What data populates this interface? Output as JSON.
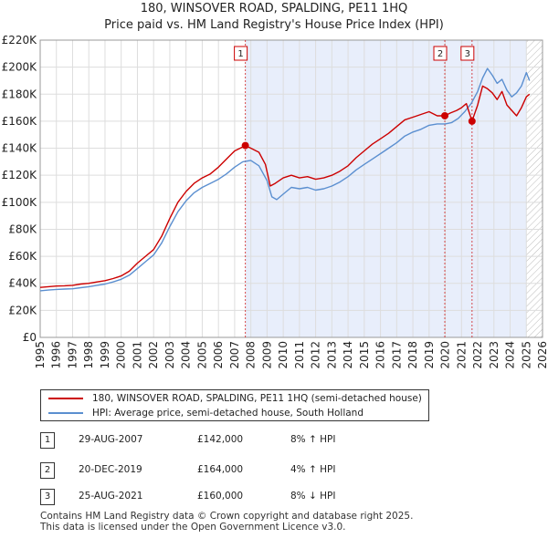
{
  "title_line1": "180, WINSOVER ROAD, SPALDING, PE11 1HQ",
  "title_line2": "Price paid vs. HM Land Registry's House Price Index (HPI)",
  "colors": {
    "property": "#cc0000",
    "hpi": "#5b8fd0",
    "shade": "#e8eefb",
    "event_line": "#cc0000"
  },
  "chart_data": {
    "type": "line",
    "xlim": [
      1995,
      2026
    ],
    "ylim": [
      0,
      220000
    ],
    "x_ticks": [
      "1995",
      "1996",
      "1997",
      "1998",
      "1999",
      "2000",
      "2001",
      "2002",
      "2003",
      "2004",
      "2005",
      "2006",
      "2007",
      "2008",
      "2009",
      "2010",
      "2011",
      "2012",
      "2013",
      "2014",
      "2015",
      "2016",
      "2017",
      "2018",
      "2019",
      "2020",
      "2021",
      "2022",
      "2023",
      "2024",
      "2025",
      "2026"
    ],
    "y_ticks": [
      {
        "value": 0,
        "label": "£0"
      },
      {
        "value": 20000,
        "label": "£20K"
      },
      {
        "value": 40000,
        "label": "£40K"
      },
      {
        "value": 60000,
        "label": "£60K"
      },
      {
        "value": 80000,
        "label": "£80K"
      },
      {
        "value": 100000,
        "label": "£100K"
      },
      {
        "value": 120000,
        "label": "£120K"
      },
      {
        "value": 140000,
        "label": "£140K"
      },
      {
        "value": 160000,
        "label": "£160K"
      },
      {
        "value": 180000,
        "label": "£180K"
      },
      {
        "value": 200000,
        "label": "£200K"
      },
      {
        "value": 220000,
        "label": "£220K"
      }
    ],
    "grid": true,
    "shaded_range": [
      2007.66,
      2025.0
    ],
    "hatched_from": 2025.0,
    "series": [
      {
        "name": "180, WINSOVER ROAD, SPALDING, PE11 1HQ (semi-detached house)",
        "color": "#cc0000",
        "x": [
          1995.0,
          1995.5,
          1996.0,
          1996.5,
          1997.0,
          1997.5,
          1998.0,
          1998.5,
          1999.0,
          1999.5,
          2000.0,
          2000.5,
          2001.0,
          2001.5,
          2002.0,
          2002.5,
          2003.0,
          2003.5,
          2004.0,
          2004.5,
          2005.0,
          2005.5,
          2006.0,
          2006.5,
          2007.0,
          2007.5,
          2007.66,
          2008.0,
          2008.5,
          2008.9,
          2009.2,
          2009.5,
          2010.0,
          2010.5,
          2011.0,
          2011.5,
          2012.0,
          2012.5,
          2013.0,
          2013.5,
          2014.0,
          2014.5,
          2015.0,
          2015.5,
          2016.0,
          2016.5,
          2017.0,
          2017.5,
          2018.0,
          2018.5,
          2019.0,
          2019.5,
          2019.97,
          2020.3,
          2020.7,
          2021.0,
          2021.3,
          2021.65,
          2022.0,
          2022.3,
          2022.6,
          2022.9,
          2023.2,
          2023.5,
          2023.8,
          2024.1,
          2024.4,
          2024.7,
          2025.0,
          2025.2
        ],
        "y": [
          37000,
          37500,
          38000,
          38200,
          38500,
          39500,
          40000,
          41000,
          42000,
          43500,
          45500,
          49000,
          55000,
          60000,
          65000,
          75000,
          88000,
          100000,
          108000,
          114000,
          118000,
          121000,
          126000,
          132000,
          138000,
          141000,
          142000,
          140000,
          137000,
          128000,
          112000,
          114000,
          118000,
          120000,
          118000,
          119000,
          117000,
          118000,
          120000,
          123000,
          127000,
          133000,
          138000,
          143000,
          147000,
          151000,
          156000,
          161000,
          163000,
          165000,
          167000,
          164000,
          164000,
          166000,
          168000,
          170000,
          173000,
          160000,
          172000,
          186000,
          184000,
          181000,
          176000,
          182000,
          172000,
          168000,
          164000,
          170000,
          178000,
          180000
        ]
      },
      {
        "name": "HPI: Average price, semi-detached house, South Holland",
        "color": "#5b8fd0",
        "x": [
          1995.0,
          1995.5,
          1996.0,
          1996.5,
          1997.0,
          1997.5,
          1998.0,
          1998.5,
          1999.0,
          1999.5,
          2000.0,
          2000.5,
          2001.0,
          2001.5,
          2002.0,
          2002.5,
          2003.0,
          2003.5,
          2004.0,
          2004.5,
          2005.0,
          2005.5,
          2006.0,
          2006.5,
          2007.0,
          2007.5,
          2008.0,
          2008.5,
          2009.0,
          2009.3,
          2009.6,
          2010.0,
          2010.5,
          2011.0,
          2011.5,
          2012.0,
          2012.5,
          2013.0,
          2013.5,
          2014.0,
          2014.5,
          2015.0,
          2015.5,
          2016.0,
          2016.5,
          2017.0,
          2017.5,
          2018.0,
          2018.5,
          2019.0,
          2019.5,
          2020.0,
          2020.4,
          2020.8,
          2021.2,
          2021.6,
          2022.0,
          2022.3,
          2022.6,
          2022.9,
          2023.2,
          2023.5,
          2023.8,
          2024.1,
          2024.4,
          2024.7,
          2025.0,
          2025.2
        ],
        "y": [
          34500,
          35000,
          35500,
          35800,
          36000,
          36800,
          37500,
          38500,
          39500,
          41000,
          43000,
          46000,
          51000,
          56000,
          61000,
          70000,
          82000,
          93000,
          101000,
          107000,
          111000,
          114000,
          117000,
          121000,
          126000,
          130000,
          131000,
          127000,
          116000,
          104000,
          102000,
          106000,
          111000,
          110000,
          111000,
          109000,
          110000,
          112000,
          115000,
          119000,
          124000,
          128000,
          132000,
          136000,
          140000,
          144000,
          149000,
          152000,
          154000,
          157000,
          158000,
          158000,
          159000,
          162000,
          167000,
          173000,
          182000,
          192000,
          199000,
          194000,
          188000,
          191000,
          183000,
          178000,
          181000,
          186000,
          196000,
          190000
        ]
      }
    ],
    "events": [
      {
        "num": "1",
        "x": 2007.66,
        "y": 142000,
        "date": "29-AUG-2007",
        "price": "£142,000",
        "hpi": "8% ↑ HPI"
      },
      {
        "num": "2",
        "x": 2019.97,
        "y": 164000,
        "date": "20-DEC-2019",
        "price": "£164,000",
        "hpi": "4% ↑ HPI"
      },
      {
        "num": "3",
        "x": 2021.65,
        "y": 160000,
        "date": "25-AUG-2021",
        "price": "£160,000",
        "hpi": "8% ↓ HPI"
      }
    ]
  },
  "legend": {
    "property_label": "180, WINSOVER ROAD, SPALDING, PE11 1HQ (semi-detached house)",
    "hpi_label": "HPI: Average price, semi-detached house, South Holland"
  },
  "footer_line1": "Contains HM Land Registry data © Crown copyright and database right 2025.",
  "footer_line2": "This data is licensed under the Open Government Licence v3.0."
}
